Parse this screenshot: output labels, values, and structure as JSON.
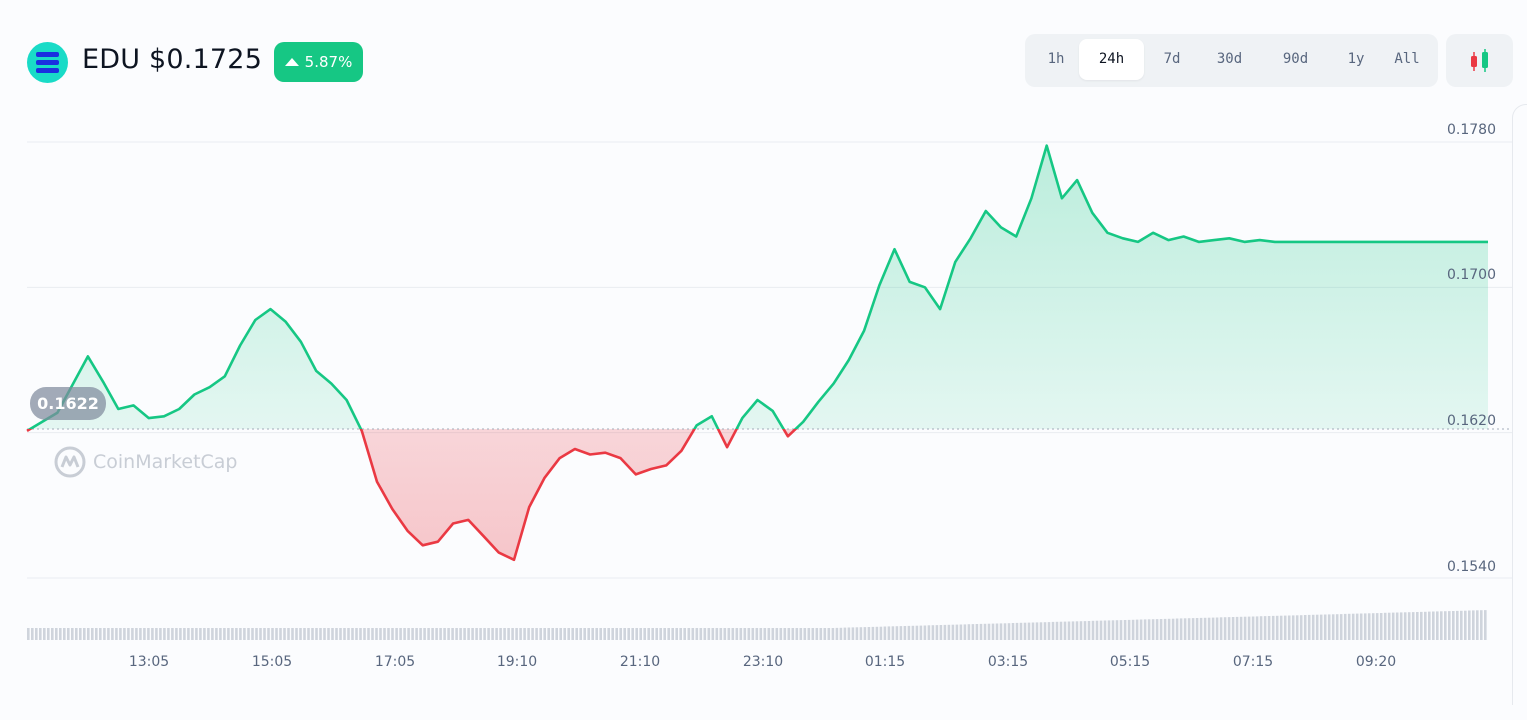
{
  "asset": {
    "symbol": "EDU",
    "price": "$0.1725",
    "change": "5.87%",
    "icon": "edu-logo-icon"
  },
  "time_ranges": [
    {
      "label": "1h",
      "active": false
    },
    {
      "label": "24h",
      "active": true
    },
    {
      "label": "7d",
      "active": false
    },
    {
      "label": "30d",
      "active": false
    },
    {
      "label": "90d",
      "active": false
    },
    {
      "label": "1y",
      "active": false
    },
    {
      "label": "All",
      "active": false
    }
  ],
  "chart_toggle": {
    "icon": "candlestick-icon"
  },
  "watermark": "CoinMarketCap",
  "colors": {
    "up": "#16c784",
    "down": "#ea3943",
    "badge": "#16c784"
  },
  "chart_data": {
    "type": "line",
    "baseline": 0.1622,
    "baseline_label": "0.1622",
    "y_ticks": [
      "0.1780",
      "0.1700",
      "0.1620",
      "0.1540"
    ],
    "ylim": [
      0.154,
      0.178
    ],
    "x_ticks": [
      "13:05",
      "15:05",
      "17:05",
      "19:10",
      "21:10",
      "23:10",
      "01:15",
      "03:15",
      "05:15",
      "07:15",
      "09:20"
    ],
    "x": [
      0,
      0.5,
      1,
      1.25,
      1.5,
      1.75,
      2,
      2.25,
      2.5,
      2.75,
      3,
      3.25,
      3.5,
      3.75,
      4,
      4.25,
      4.5,
      4.75,
      5,
      5.25,
      5.5,
      5.75,
      6,
      6.25,
      6.5,
      6.75,
      7,
      7.25,
      7.5,
      7.75,
      8,
      8.25,
      8.5,
      8.75,
      9,
      9.25,
      9.5,
      9.75,
      10,
      10.25,
      10.5,
      10.75,
      11,
      11.25,
      11.5,
      11.75,
      12,
      12.25,
      12.5,
      12.75,
      13,
      13.25,
      13.5,
      13.75,
      14,
      14.25,
      14.5,
      14.75,
      15,
      15.25,
      15.5,
      15.75,
      16,
      16.25,
      16.5,
      16.75,
      17,
      17.25,
      17.5,
      17.75,
      18,
      18.25,
      18.5,
      18.75,
      19,
      19.25,
      19.5,
      19.75,
      20,
      20.25,
      20.5,
      20.75,
      21,
      21.25,
      21.5,
      21.75,
      22,
      22.25,
      22.5,
      22.75,
      23,
      23.25,
      23.5,
      23.75,
      24
    ],
    "y": [
      0.1621,
      0.1631,
      0.1662,
      0.1648,
      0.1633,
      0.1635,
      0.1628,
      0.1629,
      0.1633,
      0.1641,
      0.1645,
      0.1651,
      0.1668,
      0.1682,
      0.1688,
      0.1681,
      0.167,
      0.1654,
      0.1647,
      0.1638,
      0.1621,
      0.1593,
      0.1578,
      0.1566,
      0.1558,
      0.156,
      0.157,
      0.1572,
      0.1563,
      0.1554,
      0.155,
      0.1579,
      0.1595,
      0.1606,
      0.1611,
      0.1608,
      0.1609,
      0.1606,
      0.1597,
      0.16,
      0.1602,
      0.161,
      0.1624,
      0.1629,
      0.1612,
      0.1628,
      0.1638,
      0.1632,
      0.1618,
      0.1626,
      0.1637,
      0.1647,
      0.166,
      0.1676,
      0.1701,
      0.1721,
      0.1703,
      0.17,
      0.1688,
      0.1714,
      0.1727,
      0.1742,
      0.1733,
      0.1728,
      0.1749,
      0.1778,
      0.1749,
      0.1759,
      0.1741,
      0.173,
      0.1727,
      0.1725,
      0.173,
      0.1726,
      0.1728,
      0.1725,
      0.1726,
      0.1727,
      0.1725,
      0.1726,
      0.1725,
      0.1725,
      0.1725,
      0.1725,
      0.1725,
      0.1725,
      0.1725,
      0.1725,
      0.1725,
      0.1725,
      0.1725,
      0.1725,
      0.1725,
      0.1725,
      0.1725
    ]
  }
}
